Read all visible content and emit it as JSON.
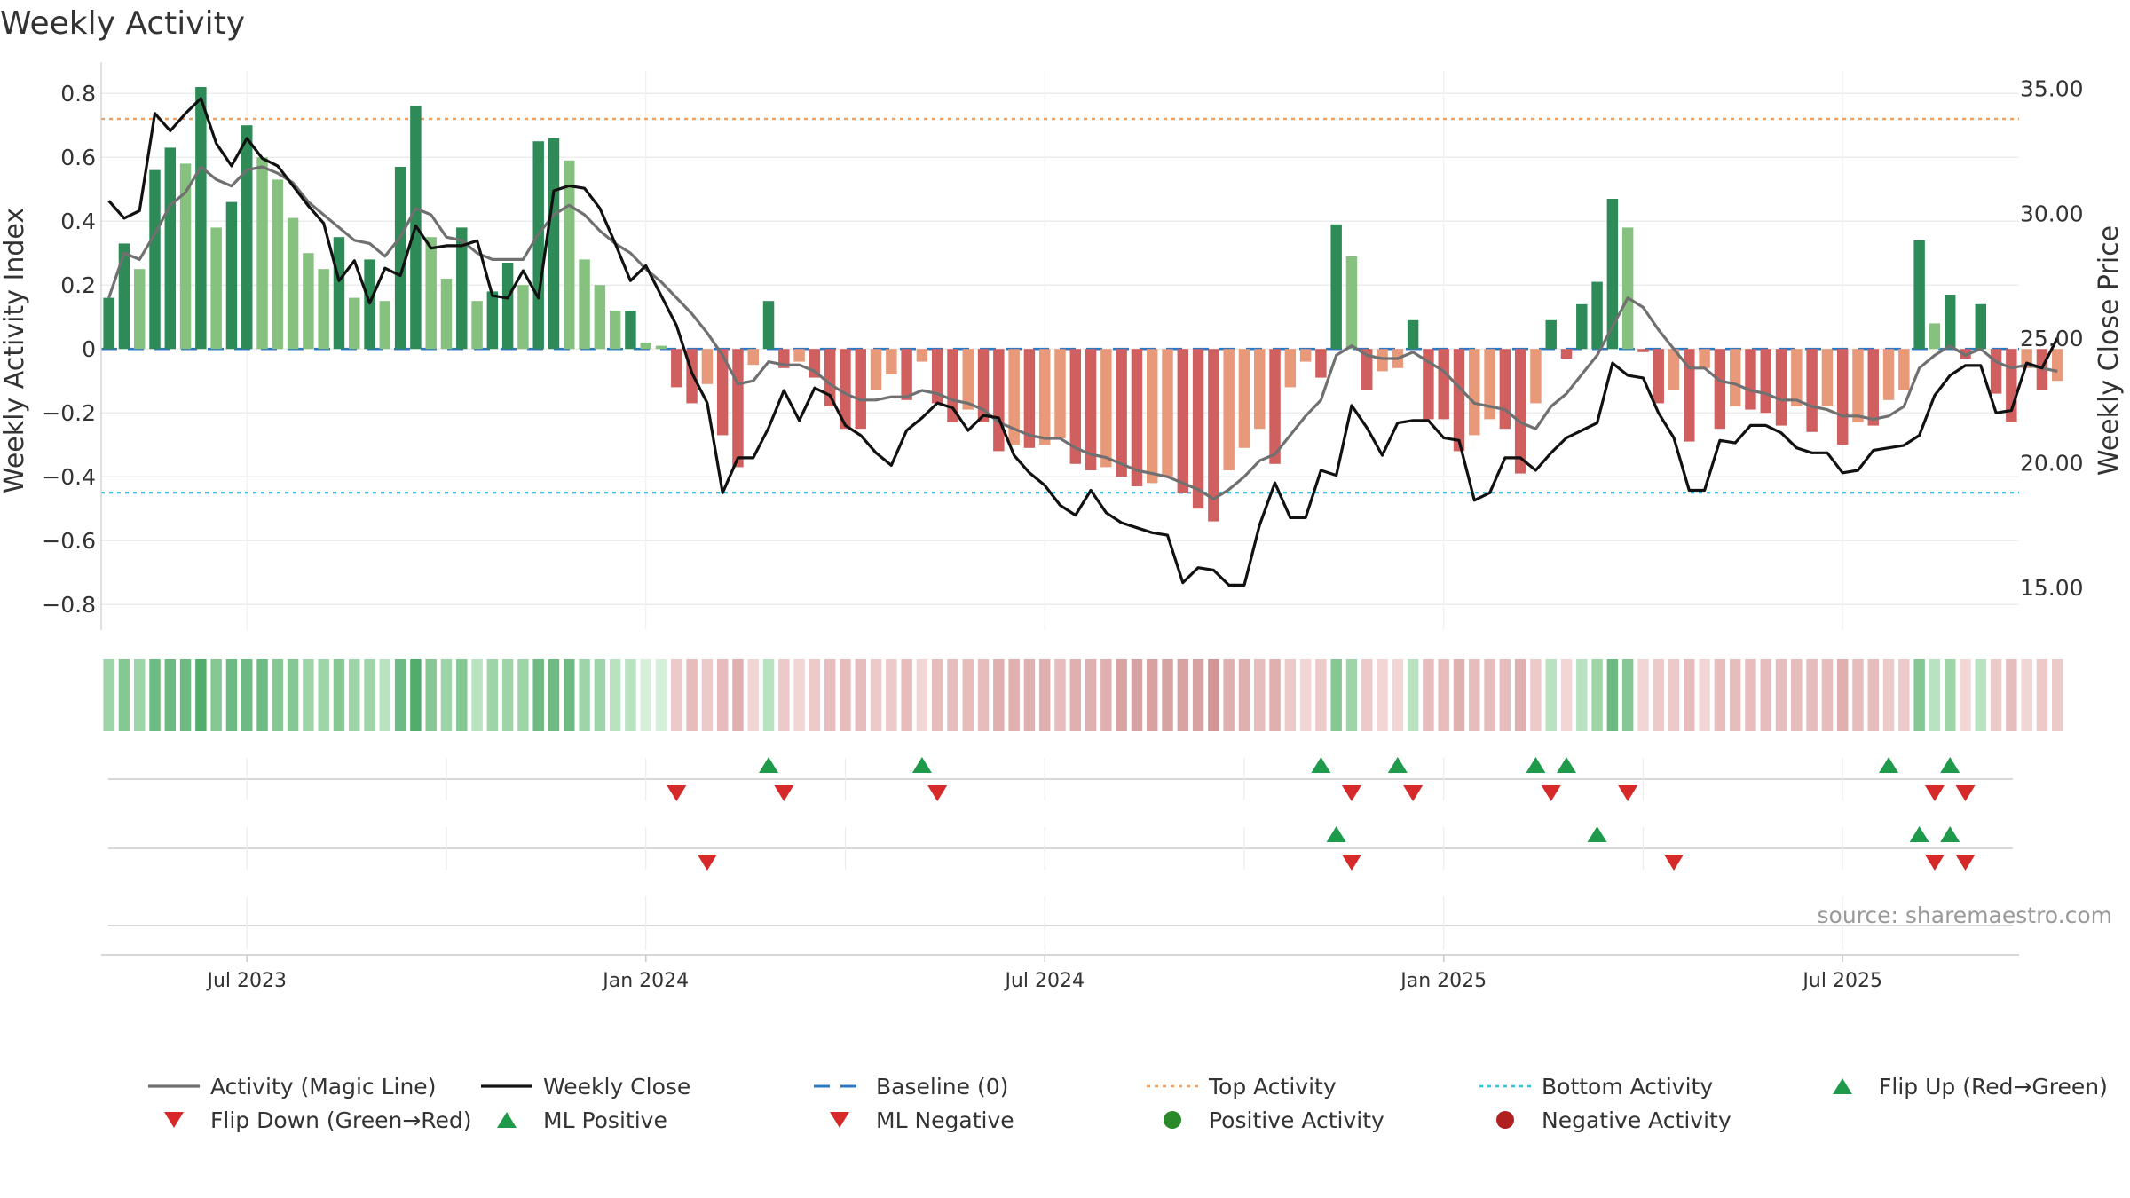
{
  "chart_data": {
    "type": "bar",
    "title": "Weekly Activity",
    "ylabel": "Weekly Activity Index",
    "y2label": "Weekly Close Price",
    "ylim": [
      -0.88,
      0.87
    ],
    "y2lim": [
      13.3,
      35.7
    ],
    "yticks": [
      0.8,
      0.6,
      0.4,
      0.2,
      0,
      -0.2,
      -0.4,
      -0.6,
      -0.8
    ],
    "ytick_labels": [
      "0.8",
      "0.6",
      "0.4",
      "0.2",
      "0",
      "−0.2",
      "−0.4",
      "−0.6",
      "−0.8"
    ],
    "y2ticks": [
      35,
      30,
      25,
      20,
      15
    ],
    "y2tick_labels": [
      "35.00",
      "30.00",
      "25.00",
      "20.00",
      "15.00"
    ],
    "xticks": [
      {
        "label": "Jul 2023",
        "week": 9
      },
      {
        "label": "Jan 2024",
        "week": 35
      },
      {
        "label": "Jul 2024",
        "week": 61
      },
      {
        "label": "Jan 2025",
        "week": 87
      },
      {
        "label": "Jul 2025",
        "week": 113
      }
    ],
    "x_minor_ticks": [
      22,
      48,
      74,
      100
    ],
    "x_range": [
      -0.5,
      124.5
    ],
    "top_activity": 0.72,
    "bottom_activity": -0.45,
    "activity": [
      0.16,
      0.33,
      0.25,
      0.56,
      0.63,
      0.58,
      0.82,
      0.38,
      0.46,
      0.7,
      0.6,
      0.53,
      0.41,
      0.3,
      0.25,
      0.35,
      0.16,
      0.28,
      0.15,
      0.57,
      0.76,
      0.35,
      0.22,
      0.38,
      0.15,
      0.18,
      0.27,
      0.2,
      0.65,
      0.66,
      0.59,
      0.28,
      0.2,
      0.12,
      0.12,
      0.02,
      0.01,
      -0.12,
      -0.17,
      -0.11,
      -0.27,
      -0.37,
      -0.05,
      0.15,
      -0.06,
      -0.04,
      -0.09,
      -0.18,
      -0.25,
      -0.25,
      -0.13,
      -0.08,
      -0.16,
      -0.04,
      -0.17,
      -0.23,
      -0.19,
      -0.23,
      -0.32,
      -0.3,
      -0.31,
      -0.3,
      -0.28,
      -0.36,
      -0.38,
      -0.37,
      -0.4,
      -0.43,
      -0.42,
      -0.4,
      -0.45,
      -0.5,
      -0.54,
      -0.38,
      -0.31,
      -0.25,
      -0.36,
      -0.12,
      -0.04,
      -0.09,
      0.39,
      0.29,
      -0.13,
      -0.07,
      -0.06,
      0.09,
      -0.22,
      -0.22,
      -0.32,
      -0.27,
      -0.22,
      -0.25,
      -0.39,
      -0.17,
      0.09,
      -0.03,
      0.14,
      0.21,
      0.47,
      0.38,
      -0.01,
      -0.17,
      -0.13,
      -0.29,
      -0.06,
      -0.25,
      -0.18,
      -0.19,
      -0.2,
      -0.24,
      -0.18,
      -0.26,
      -0.18,
      -0.3,
      -0.23,
      -0.24,
      -0.16,
      -0.13,
      0.34,
      0.08,
      0.17,
      -0.03,
      0.14,
      -0.14,
      -0.23,
      -0.06,
      -0.13,
      -0.1
    ],
    "magic_line": [
      0.16,
      0.3,
      0.28,
      0.36,
      0.45,
      0.49,
      0.57,
      0.53,
      0.51,
      0.56,
      0.57,
      0.55,
      0.52,
      0.46,
      0.42,
      0.38,
      0.34,
      0.33,
      0.29,
      0.35,
      0.44,
      0.42,
      0.35,
      0.34,
      0.3,
      0.28,
      0.28,
      0.28,
      0.36,
      0.42,
      0.45,
      0.42,
      0.37,
      0.33,
      0.3,
      0.25,
      0.21,
      0.16,
      0.11,
      0.05,
      -0.02,
      -0.11,
      -0.1,
      -0.04,
      -0.05,
      -0.05,
      -0.07,
      -0.11,
      -0.14,
      -0.16,
      -0.16,
      -0.15,
      -0.15,
      -0.13,
      -0.14,
      -0.16,
      -0.17,
      -0.19,
      -0.23,
      -0.25,
      -0.27,
      -0.28,
      -0.28,
      -0.31,
      -0.33,
      -0.34,
      -0.36,
      -0.38,
      -0.39,
      -0.4,
      -0.42,
      -0.44,
      -0.47,
      -0.44,
      -0.4,
      -0.35,
      -0.33,
      -0.27,
      -0.21,
      -0.16,
      -0.02,
      0.01,
      -0.02,
      -0.03,
      -0.03,
      -0.01,
      -0.04,
      -0.07,
      -0.12,
      -0.17,
      -0.18,
      -0.19,
      -0.23,
      -0.25,
      -0.18,
      -0.14,
      -0.08,
      -0.02,
      0.07,
      0.16,
      0.13,
      0.06,
      0.0,
      -0.06,
      -0.06,
      -0.1,
      -0.11,
      -0.13,
      -0.14,
      -0.16,
      -0.16,
      -0.18,
      -0.19,
      -0.21,
      -0.21,
      -0.22,
      -0.21,
      -0.18,
      -0.06,
      -0.02,
      0.01,
      -0.02,
      0.0,
      -0.04,
      -0.06,
      -0.05,
      -0.06,
      -0.07
    ],
    "weekly_close": [
      30.5,
      29.8,
      30.1,
      34.0,
      33.3,
      34.0,
      34.6,
      32.8,
      31.9,
      33.0,
      32.2,
      31.9,
      31.1,
      30.3,
      29.6,
      27.3,
      28.1,
      26.4,
      27.8,
      27.5,
      29.5,
      28.6,
      28.7,
      28.7,
      28.9,
      26.7,
      26.6,
      27.7,
      26.6,
      30.9,
      31.1,
      31.0,
      30.2,
      28.8,
      27.3,
      27.9,
      26.7,
      25.5,
      23.6,
      22.4,
      18.8,
      20.2,
      20.2,
      21.4,
      22.9,
      21.7,
      23.0,
      22.7,
      21.5,
      21.1,
      20.4,
      19.9,
      21.3,
      21.8,
      22.4,
      22.2,
      21.3,
      21.9,
      21.8,
      20.3,
      19.6,
      19.1,
      18.3,
      17.9,
      18.9,
      18.0,
      17.6,
      17.4,
      17.2,
      17.1,
      15.2,
      15.8,
      15.7,
      15.1,
      15.1,
      17.5,
      19.2,
      17.8,
      17.8,
      19.7,
      19.5,
      22.3,
      21.4,
      20.3,
      21.6,
      21.7,
      21.7,
      21.0,
      20.9,
      18.5,
      18.8,
      20.2,
      20.2,
      19.7,
      20.4,
      21.0,
      21.3,
      21.6,
      24.0,
      23.5,
      23.4,
      22.0,
      21.0,
      18.9,
      18.9,
      20.9,
      20.8,
      21.5,
      21.5,
      21.2,
      20.6,
      20.4,
      20.4,
      19.6,
      19.7,
      20.5,
      20.6,
      20.7,
      21.1,
      22.7,
      23.5,
      23.9,
      23.9,
      22.0,
      22.1,
      24.0,
      23.8,
      25.0
    ],
    "heat_strip": [
      3,
      4,
      3,
      5,
      5,
      5,
      6,
      4,
      5,
      5,
      5,
      4,
      4,
      3,
      3,
      4,
      3,
      3,
      2,
      5,
      6,
      4,
      3,
      4,
      2,
      3,
      3,
      3,
      5,
      5,
      5,
      3,
      3,
      2,
      2,
      1,
      1,
      -2,
      -3,
      -2,
      -3,
      -4,
      -1,
      2,
      -2,
      -1,
      -2,
      -3,
      -3,
      -3,
      -2,
      -2,
      -3,
      -1,
      -3,
      -3,
      -3,
      -3,
      -4,
      -4,
      -4,
      -4,
      -3,
      -4,
      -4,
      -4,
      -5,
      -5,
      -5,
      -5,
      -5,
      -5,
      -6,
      -4,
      -4,
      -3,
      -4,
      -2,
      -1,
      -2,
      4,
      3,
      -2,
      -1,
      -1,
      2,
      -3,
      -3,
      -4,
      -3,
      -3,
      -3,
      -4,
      -2,
      2,
      -1,
      2,
      3,
      5,
      4,
      -1,
      -2,
      -2,
      -3,
      -1,
      -3,
      -3,
      -3,
      -3,
      -3,
      -3,
      -3,
      -3,
      -4,
      -3,
      -3,
      -2,
      -2,
      4,
      2,
      3,
      -1,
      2,
      -2,
      -3,
      -1,
      -2,
      -2
    ],
    "flip_up_weeks": [
      43,
      53,
      79,
      84,
      93,
      95,
      116,
      120
    ],
    "flip_down_weeks": [
      37,
      44,
      54,
      81,
      85,
      94,
      99,
      119,
      121
    ],
    "ml_positive_weeks": [
      80,
      97,
      118,
      120
    ],
    "ml_negative_weeks": [
      39,
      81,
      102,
      119,
      121
    ],
    "positive_activity_weeks": [],
    "negative_activity_weeks": [],
    "source_note": "source: sharemaestro.com",
    "legend_position": "bottom",
    "legend": [
      {
        "label": "Activity (Magic Line)",
        "kind": "line",
        "color": "#707070"
      },
      {
        "label": "Weekly Close",
        "kind": "line",
        "color": "#111111"
      },
      {
        "label": "Baseline (0)",
        "kind": "dash",
        "color": "#2e78c2"
      },
      {
        "label": "Top Activity",
        "kind": "dot",
        "color": "#f0a060"
      },
      {
        "label": "Bottom Activity",
        "kind": "dot",
        "color": "#2fc4dc"
      },
      {
        "label": "Flip Up (Red→Green)",
        "kind": "tri-up",
        "color": "#1e9a4a"
      },
      {
        "label": "Flip Down (Green→Red)",
        "kind": "tri-down",
        "color": "#d62a2a"
      },
      {
        "label": "ML Positive",
        "kind": "tri-up",
        "color": "#1e9a4a"
      },
      {
        "label": "ML Negative",
        "kind": "tri-down",
        "color": "#d62a2a"
      },
      {
        "label": "Positive Activity",
        "kind": "circle",
        "color": "#2a8a2a"
      },
      {
        "label": "Negative Activity",
        "kind": "circle",
        "color": "#b02020"
      }
    ],
    "colors": {
      "pos_strong": "#2e8b57",
      "pos_light": "#86c17f",
      "neg_strong": "#d06060",
      "neg_light": "#e8997a",
      "magic_line": "#707070",
      "close": "#111111",
      "baseline": "#2e78c2",
      "top": "#f0a060",
      "bottom": "#2fc4dc",
      "up": "#1e9a4a",
      "down": "#d62a2a",
      "text": "#333333",
      "grid": "#e6e6e6"
    }
  }
}
